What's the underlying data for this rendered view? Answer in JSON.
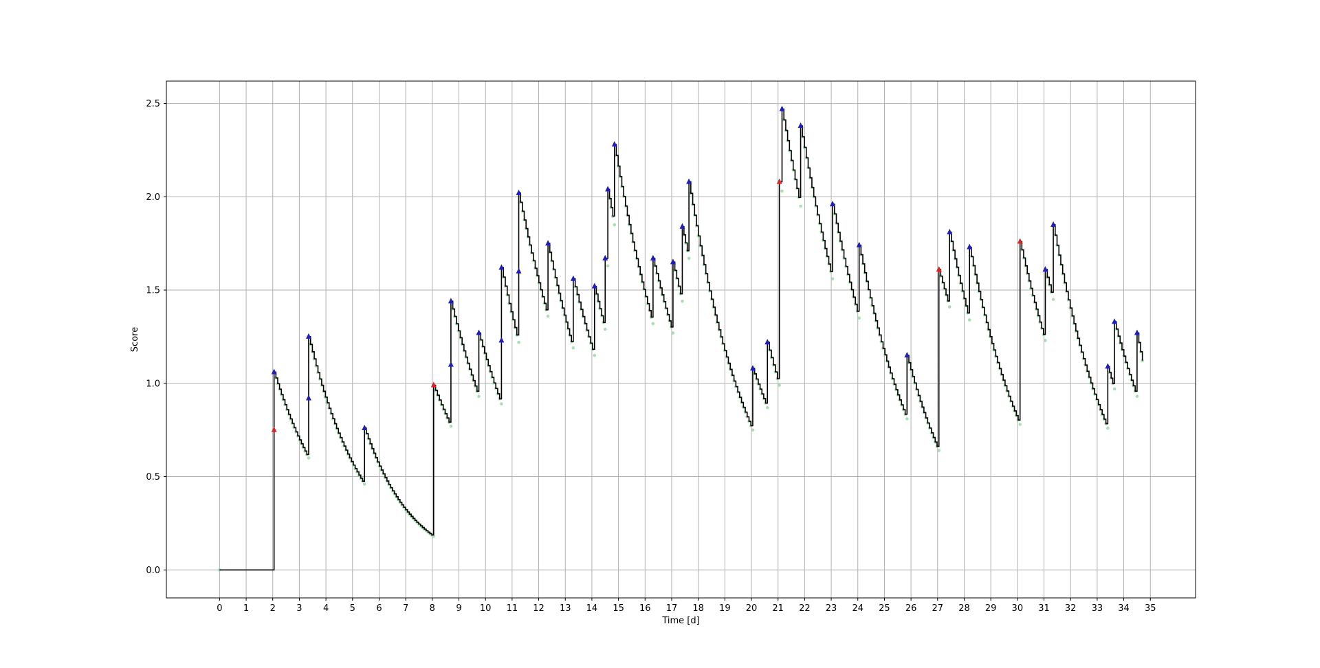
{
  "chart_data": {
    "type": "line",
    "title": "",
    "xlabel": "Time [d]",
    "ylabel": "Score",
    "xlim": [
      -2.0,
      36.7
    ],
    "ylim": [
      -0.15,
      2.62
    ],
    "grid": true,
    "xticks": [
      0,
      1,
      2,
      3,
      4,
      5,
      6,
      7,
      8,
      9,
      10,
      11,
      12,
      13,
      14,
      15,
      16,
      17,
      18,
      19,
      20,
      21,
      22,
      23,
      24,
      25,
      26,
      27,
      28,
      29,
      30,
      31,
      32,
      33,
      34,
      35
    ],
    "xtick_labels": [
      "0",
      "1",
      "2",
      "3",
      "4",
      "5",
      "6",
      "7",
      "8",
      "9",
      "10",
      "11",
      "12",
      "13",
      "14",
      "15",
      "16",
      "17",
      "18",
      "19",
      "20",
      "21",
      "22",
      "23",
      "24",
      "25",
      "26",
      "27",
      "28",
      "29",
      "30",
      "31",
      "32",
      "33",
      "34",
      "35"
    ],
    "yticks": [
      0.0,
      0.5,
      1.0,
      1.5,
      2.0,
      2.5
    ],
    "ytick_labels": [
      "0.0",
      "0.5",
      "1.0",
      "1.5",
      "2.0",
      "2.5"
    ],
    "end_time": 34.7,
    "decay_rate": 0.62,
    "step_width": 0.07,
    "events": [
      {
        "t": 2.05,
        "pre": 0.0,
        "after": [
          0.75,
          1.06
        ],
        "kind": "red"
      },
      {
        "t": 3.35,
        "pre": 0.6,
        "after": [
          0.92,
          1.25
        ],
        "kind": "blue"
      },
      {
        "t": 5.45,
        "pre": 0.46,
        "after": [
          0.76
        ],
        "kind": "blue"
      },
      {
        "t": 8.05,
        "pre": 0.18,
        "after": [
          0.99
        ],
        "kind": "red"
      },
      {
        "t": 8.7,
        "pre": 0.77,
        "after": [
          1.1,
          1.44
        ],
        "kind": "blue"
      },
      {
        "t": 9.75,
        "pre": 0.93,
        "after": [
          1.27
        ],
        "kind": "blue"
      },
      {
        "t": 10.6,
        "pre": 0.89,
        "after": [
          1.23,
          1.62
        ],
        "kind": "blue"
      },
      {
        "t": 11.25,
        "pre": 1.22,
        "after": [
          1.6,
          2.02
        ],
        "kind": "blue"
      },
      {
        "t": 12.35,
        "pre": 1.36,
        "after": [
          1.75
        ],
        "kind": "blue"
      },
      {
        "t": 13.3,
        "pre": 1.19,
        "after": [
          1.56
        ],
        "kind": "blue"
      },
      {
        "t": 14.1,
        "pre": 1.15,
        "after": [
          1.52
        ],
        "kind": "blue"
      },
      {
        "t": 14.5,
        "pre": 1.29,
        "after": [
          1.67
        ],
        "kind": "blue"
      },
      {
        "t": 14.6,
        "pre": 1.63,
        "after": [
          2.04
        ],
        "kind": "blue"
      },
      {
        "t": 14.85,
        "pre": 1.85,
        "after": [
          2.28
        ],
        "kind": "blue"
      },
      {
        "t": 16.3,
        "pre": 1.32,
        "after": [
          1.67
        ],
        "kind": "blue"
      },
      {
        "t": 17.05,
        "pre": 1.27,
        "after": [
          1.65
        ],
        "kind": "blue"
      },
      {
        "t": 17.4,
        "pre": 1.44,
        "after": [
          1.84
        ],
        "kind": "blue"
      },
      {
        "t": 17.65,
        "pre": 1.67,
        "after": [
          2.08
        ],
        "kind": "blue"
      },
      {
        "t": 20.05,
        "pre": 0.75,
        "after": [
          1.08
        ],
        "kind": "blue"
      },
      {
        "t": 20.6,
        "pre": 0.87,
        "after": [
          1.22
        ],
        "kind": "blue"
      },
      {
        "t": 21.05,
        "pre": 0.99,
        "after": [
          2.08
        ],
        "kind": "red"
      },
      {
        "t": 21.15,
        "pre": 2.03,
        "after": [
          2.47
        ],
        "kind": "blue"
      },
      {
        "t": 21.85,
        "pre": 1.95,
        "after": [
          2.38
        ],
        "kind": "blue"
      },
      {
        "t": 23.05,
        "pre": 1.56,
        "after": [
          1.96
        ],
        "kind": "blue"
      },
      {
        "t": 24.05,
        "pre": 1.35,
        "after": [
          1.74
        ],
        "kind": "blue"
      },
      {
        "t": 25.85,
        "pre": 0.81,
        "after": [
          1.15
        ],
        "kind": "blue"
      },
      {
        "t": 27.05,
        "pre": 0.64,
        "after": [
          1.61
        ],
        "kind": "red"
      },
      {
        "t": 27.45,
        "pre": 1.41,
        "after": [
          1.81
        ],
        "kind": "blue"
      },
      {
        "t": 28.2,
        "pre": 1.34,
        "after": [
          1.73
        ],
        "kind": "blue"
      },
      {
        "t": 30.1,
        "pre": 0.78,
        "after": [
          1.76
        ],
        "kind": "red"
      },
      {
        "t": 31.05,
        "pre": 1.23,
        "after": [
          1.61
        ],
        "kind": "blue"
      },
      {
        "t": 31.35,
        "pre": 1.45,
        "after": [
          1.85
        ],
        "kind": "blue"
      },
      {
        "t": 33.4,
        "pre": 0.76,
        "after": [
          1.09
        ],
        "kind": "blue"
      },
      {
        "t": 33.65,
        "pre": 0.97,
        "after": [
          1.33
        ],
        "kind": "blue"
      },
      {
        "t": 34.5,
        "pre": 0.93,
        "after": [
          1.27
        ],
        "kind": "blue"
      }
    ],
    "colors": {
      "line": "#000000",
      "decay_marker": "#8fd19e",
      "event_blue": "#1f1fb4",
      "event_red": "#d62728",
      "grid": "#b0b0b0",
      "axes": "#000000",
      "background": "#ffffff"
    }
  }
}
